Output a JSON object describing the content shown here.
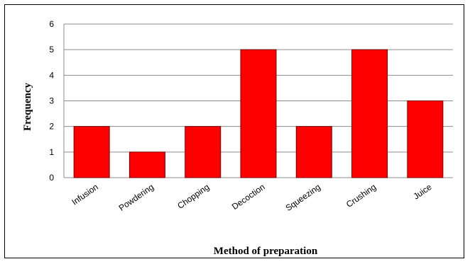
{
  "chart_data": {
    "type": "bar",
    "title": "",
    "xlabel": "Method of preparation",
    "ylabel": "Frequency",
    "ylim": [
      0,
      6
    ],
    "yticks": [
      0,
      1,
      2,
      3,
      4,
      5,
      6
    ],
    "grid": true,
    "categories": [
      "Infusion",
      "Powdering",
      "Chopping",
      "Decoction",
      "Squeezing",
      "Crushing",
      "Juice"
    ],
    "values": [
      2,
      1,
      2,
      5,
      2,
      5,
      3
    ],
    "bar_color": "#ff0000",
    "edge_color": "#7a0000",
    "grid_color": "#8c8c8c"
  }
}
